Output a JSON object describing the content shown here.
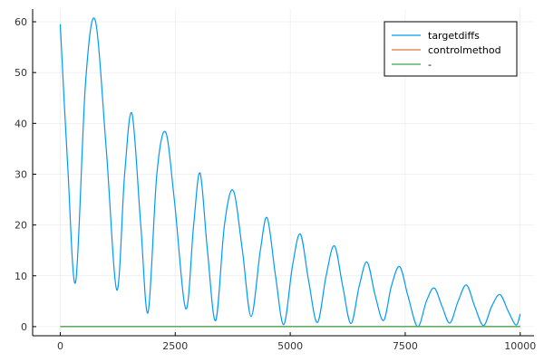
{
  "chart_data": {
    "type": "line",
    "title": "",
    "xlabel": "",
    "ylabel": "",
    "xlim": [
      -600,
      10300
    ],
    "ylim": [
      -1.8,
      62.5
    ],
    "xticks": [
      0,
      2500,
      5000,
      7500,
      10000
    ],
    "yticks": [
      0,
      10,
      20,
      30,
      40,
      50,
      60
    ],
    "grid": true,
    "legend_position": "top-right",
    "series": [
      {
        "name": "targetdiffs",
        "color": "#009AFA",
        "x": [
          0,
          160,
          335,
          550,
          760,
          1000,
          1230,
          1400,
          1560,
          1750,
          1910,
          2100,
          2290,
          2480,
          2730,
          2900,
          3040,
          3200,
          3380,
          3570,
          3760,
          3960,
          4150,
          4350,
          4500,
          4680,
          4860,
          5050,
          5220,
          5400,
          5590,
          5780,
          5960,
          6140,
          6320,
          6500,
          6670,
          6850,
          7030,
          7200,
          7380,
          7560,
          7770,
          7960,
          8130,
          8300,
          8470,
          8650,
          8830,
          9010,
          9200,
          9380,
          9560,
          9740,
          9910,
          10000
        ],
        "values": [
          59.5,
          32,
          8.8,
          48,
          60.3,
          35,
          7.2,
          30,
          41.9,
          20,
          2.8,
          30,
          38.3,
          25,
          3.5,
          20,
          30.2,
          15,
          1.2,
          20,
          26.8,
          15,
          2,
          15,
          21.4,
          10,
          0.4,
          12,
          18.2,
          9,
          0.8,
          10,
          15.9,
          8,
          0.6,
          8,
          12.7,
          6,
          1.2,
          8,
          11.8,
          6,
          0,
          5,
          7.6,
          4,
          0.7,
          5,
          8.2,
          4,
          0.2,
          4,
          6.3,
          3,
          0.3,
          2.5
        ]
      },
      {
        "name": "controlmethod",
        "color": "#E26F46",
        "x": [
          0,
          10000
        ],
        "values": [
          0,
          0
        ]
      },
      {
        "name": "-",
        "color": "#3DA44D",
        "x": [
          0,
          10000
        ],
        "values": [
          0,
          0
        ]
      }
    ]
  }
}
